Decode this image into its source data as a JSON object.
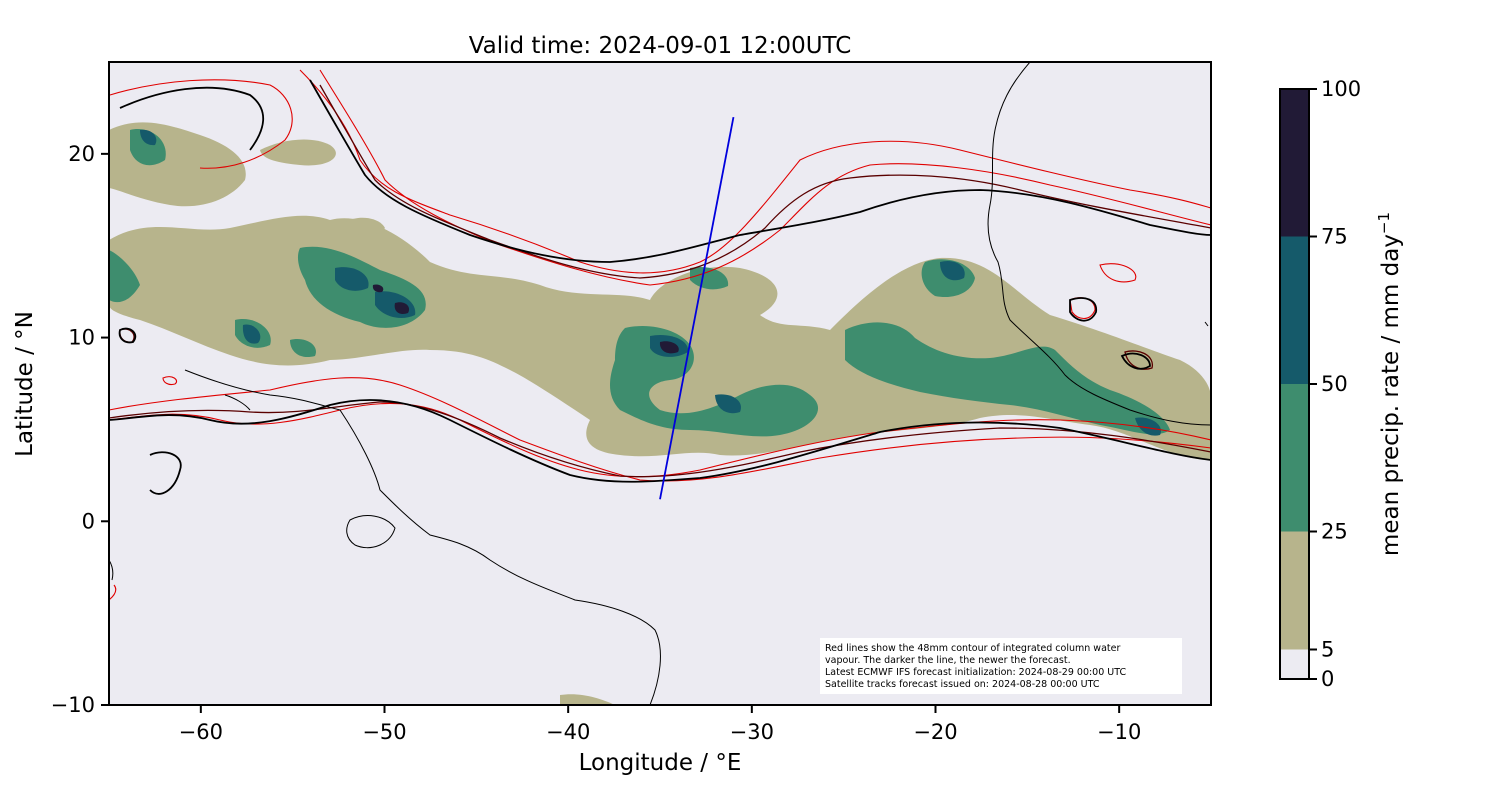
{
  "title": "Valid time: 2024-09-01 12:00UTC",
  "axes": {
    "x_label": "Longitude / °E",
    "y_label": "Latitude / °N",
    "x_ticks": [
      -60,
      -50,
      -40,
      -30,
      -20,
      -10
    ],
    "x_tick_labels": [
      "−60",
      "−50",
      "−40",
      "−30",
      "−20",
      "−10"
    ],
    "y_ticks": [
      20,
      10,
      0,
      -10
    ],
    "y_tick_labels": [
      "20",
      "10",
      "0",
      "−10"
    ],
    "x_range": [
      -65,
      -5
    ],
    "y_range": [
      -10,
      25
    ]
  },
  "colorbar": {
    "label": "mean precip. rate / mm day",
    "label_superscript": "−1",
    "ticks": [
      "0",
      "5",
      "25",
      "50",
      "75",
      "100"
    ],
    "bounds": [
      0,
      5,
      25,
      50,
      75,
      100
    ],
    "colors": [
      "#ecebf2",
      "#b7b48c",
      "#3e8d6e",
      "#155a6a",
      "#211a36"
    ]
  },
  "annotation": {
    "line1": "Red lines show the 48mm contour of integrated column water",
    "line2": "vapour. The darker the line, the newer the forecast.",
    "line3": "Latest ECMWF IFS forecast initialization: 2024-08-29 00:00 UTC",
    "line4": "Satellite tracks forecast issued on: 2024-08-28 00:00 UTC"
  },
  "satellite_track": {
    "start": [
      -35.0,
      1.2
    ],
    "end": [
      -31.0,
      22.0
    ],
    "color": "#0000dd"
  },
  "colors": {
    "ocean_background": "#ecebf2",
    "coastline": "#000000",
    "contour_newest": "#000000",
    "contour_mid": "#5a0000",
    "contour_old": "#e00000"
  },
  "chart_data": {
    "type": "heatmap",
    "title": "Valid time: 2024-09-01 12:00UTC",
    "xlabel": "Longitude / °E",
    "ylabel": "Latitude / °N",
    "xlim": [
      -65,
      -5
    ],
    "ylim": [
      -10,
      25
    ],
    "colorbar_label": "mean precip. rate / mm day⁻¹",
    "colorbar_levels": [
      0,
      5,
      25,
      50,
      75,
      100
    ]
  }
}
